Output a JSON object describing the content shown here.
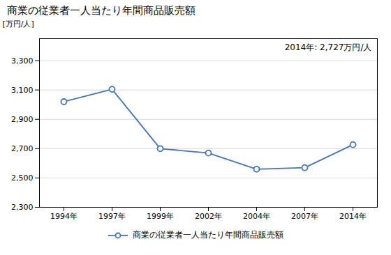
{
  "chart_data": {
    "type": "line",
    "title": "商業の従業者一人当たり年間商品販売額",
    "ylabel": "[万円/人]",
    "annotation": "2014年: 2,727万円/人",
    "categories": [
      "1994年",
      "1997年",
      "1999年",
      "2002年",
      "2004年",
      "2007年",
      "2014年"
    ],
    "series": [
      {
        "name": "商業の従業者一人当たり年間商品販売額",
        "color": "#4472C4",
        "marker": "circle",
        "values": [
          3020,
          3105,
          2700,
          2670,
          2560,
          2570,
          2727
        ]
      }
    ],
    "ylim": [
      2300,
      3450
    ],
    "yticks": [
      {
        "value": 2300,
        "label": "2,300"
      },
      {
        "value": 2500,
        "label": "2,500"
      },
      {
        "value": 2700,
        "label": "2,700"
      },
      {
        "value": 2900,
        "label": "2,900"
      },
      {
        "value": 3100,
        "label": "3,100"
      },
      {
        "value": 3300,
        "label": "3,300"
      }
    ],
    "grid": true,
    "legend": "bottom"
  }
}
